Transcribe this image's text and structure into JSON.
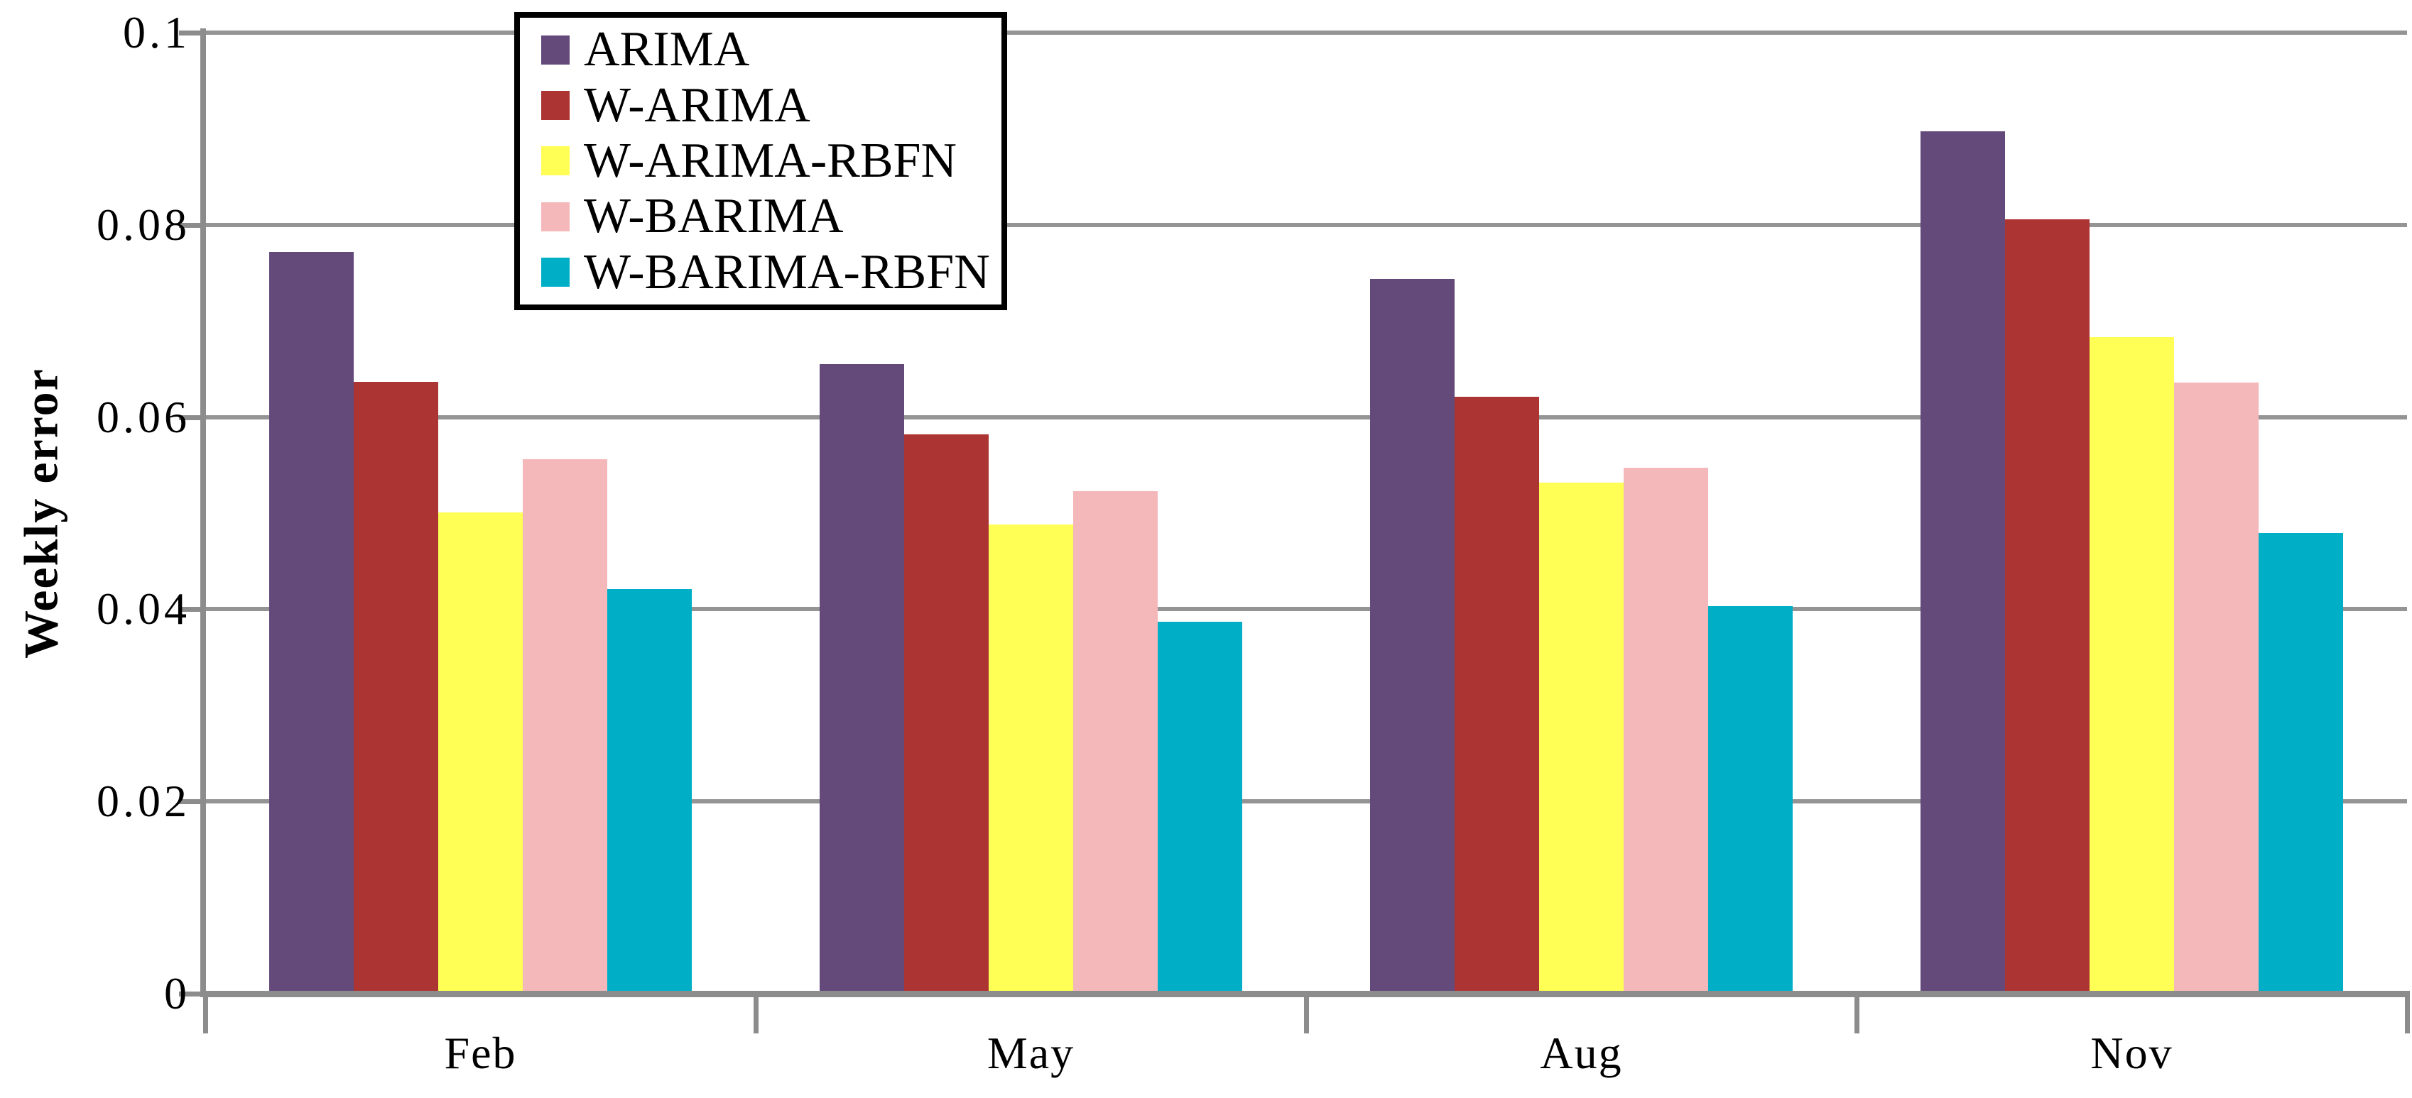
{
  "chart_data": {
    "type": "bar",
    "title": "",
    "categories": [
      "Feb",
      "May",
      "Aug",
      "Nov"
    ],
    "series": [
      {
        "name": "ARIMA",
        "color": "#64497B",
        "values": [
          0.0772,
          0.0655,
          0.0744,
          0.0897
        ]
      },
      {
        "name": "W-ARIMA",
        "color": "#AC3432",
        "values": [
          0.0637,
          0.0582,
          0.0621,
          0.0806
        ]
      },
      {
        "name": "W-ARIMA-RBFN",
        "color": "#FFFF55",
        "values": [
          0.0501,
          0.0488,
          0.0532,
          0.0683
        ]
      },
      {
        "name": "W-BARIMA",
        "color": "#F4B8BA",
        "values": [
          0.0556,
          0.0523,
          0.0547,
          0.0636
        ]
      },
      {
        "name": "W-BARIMA-RBFN",
        "color": "#00AEC6",
        "values": [
          0.0421,
          0.0387,
          0.0403,
          0.0479
        ]
      }
    ],
    "xlabel": "",
    "ylabel": "Weekly error",
    "ylim": [
      0,
      0.1
    ],
    "yticks": [
      0,
      0.02,
      0.04,
      0.06,
      0.08,
      0.1
    ],
    "ytick_labels": [
      "0",
      "0.02",
      "0.04",
      "0.06",
      "0.08",
      "0.1"
    ],
    "grid": true,
    "legend_position": "top-left-inside"
  },
  "colors": {
    "gridline": "#949494",
    "axis": "#8C8C8C",
    "tick": "#8C8C8C",
    "legend_border": "#000000",
    "background": "#FFFFFF",
    "text": "#000000"
  }
}
